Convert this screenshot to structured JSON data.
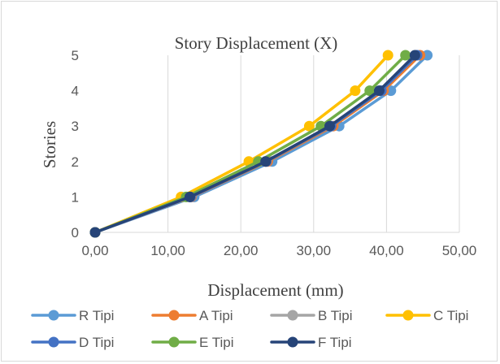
{
  "chart_data": {
    "type": "line",
    "title": "Story Displacement (X)",
    "xlabel": "Displacement (mm)",
    "ylabel": "Stories",
    "xlim": [
      0,
      50
    ],
    "ylim": [
      0,
      5
    ],
    "xticks": [
      "0,00",
      "10,00",
      "20,00",
      "30,00",
      "40,00",
      "50,00"
    ],
    "yticks": [
      "0",
      "1",
      "2",
      "3",
      "4",
      "5"
    ],
    "grid": "vertical",
    "legend_position": "bottom",
    "series": [
      {
        "name": "R Tipi",
        "color": "#5B9BD5",
        "x": [
          0,
          13.6,
          24.3,
          33.5,
          40.6,
          45.6
        ],
        "y": [
          0,
          1,
          2,
          3,
          4,
          5
        ]
      },
      {
        "name": "A Tipi",
        "color": "#ED7D31",
        "x": [
          0,
          13.2,
          23.7,
          32.7,
          39.6,
          44.6
        ],
        "y": [
          0,
          1,
          2,
          3,
          4,
          5
        ]
      },
      {
        "name": "B Tipi",
        "color": "#A5A5A5",
        "x": [
          0,
          13.0,
          23.4,
          32.3,
          39.2,
          44.1
        ],
        "y": [
          0,
          1,
          2,
          3,
          4,
          5
        ]
      },
      {
        "name": "C Tipi",
        "color": "#FFC000",
        "x": [
          0,
          11.8,
          21.1,
          29.4,
          35.7,
          40.2
        ],
        "y": [
          0,
          1,
          2,
          3,
          4,
          5
        ]
      },
      {
        "name": "D Tipi",
        "color": "#4472C4",
        "x": [
          0,
          13.1,
          23.5,
          32.4,
          39.3,
          44.2
        ],
        "y": [
          0,
          1,
          2,
          3,
          4,
          5
        ]
      },
      {
        "name": "E Tipi",
        "color": "#70AD47",
        "x": [
          0,
          12.5,
          22.4,
          31.0,
          37.7,
          42.6
        ],
        "y": [
          0,
          1,
          2,
          3,
          4,
          5
        ]
      },
      {
        "name": "F Tipi",
        "color": "#264478",
        "x": [
          0,
          13.0,
          23.4,
          32.2,
          39.0,
          43.9
        ],
        "y": [
          0,
          1,
          2,
          3,
          4,
          5
        ]
      }
    ]
  }
}
